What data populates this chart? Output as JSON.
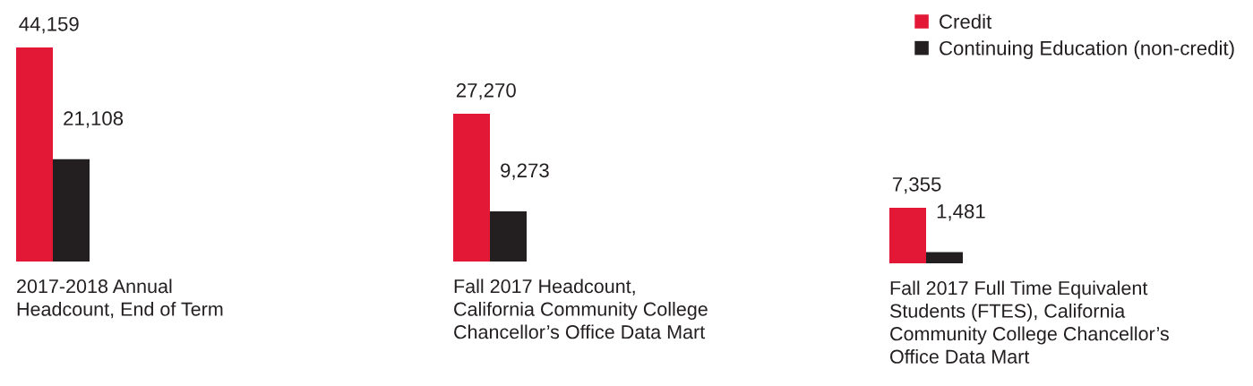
{
  "chart_data": [
    {
      "type": "bar",
      "categories": [
        null
      ],
      "xlabel": "2017-2018 Annual\nHeadcount, End of Term",
      "series": [
        {
          "color": "#e31837",
          "values": [
            44159
          ],
          "value_labels": [
            "44,159"
          ]
        },
        {
          "color": "#231f20",
          "values": [
            21108
          ],
          "value_labels": [
            "21,108"
          ]
        }
      ]
    },
    {
      "type": "bar",
      "categories": [
        null
      ],
      "xlabel": "Fall 2017 Headcount,\nCalifornia Community College\nChancellor’s Office Data Mart",
      "series": [
        {
          "color": "#e31837",
          "values": [
            27270
          ],
          "value_labels": [
            "27,270"
          ]
        },
        {
          "color": "#231f20",
          "values": [
            9273
          ],
          "value_labels": [
            "9,273"
          ]
        }
      ]
    },
    {
      "type": "bar",
      "categories": [
        null
      ],
      "xlabel": "Fall 2017 Full Time Equivalent\nStudents (FTES), California\nCommunity College Chancellor’s\nOffice Data Mart",
      "legend": "top right",
      "series": [
        {
          "name": "Credit",
          "color": "#e31837",
          "values": [
            7355
          ],
          "value_labels": [
            "7,355"
          ]
        },
        {
          "name": "Continuing Education (non-credit)",
          "color": "#231f20",
          "values": [
            1481
          ],
          "value_labels": [
            "1,481"
          ]
        }
      ]
    }
  ]
}
